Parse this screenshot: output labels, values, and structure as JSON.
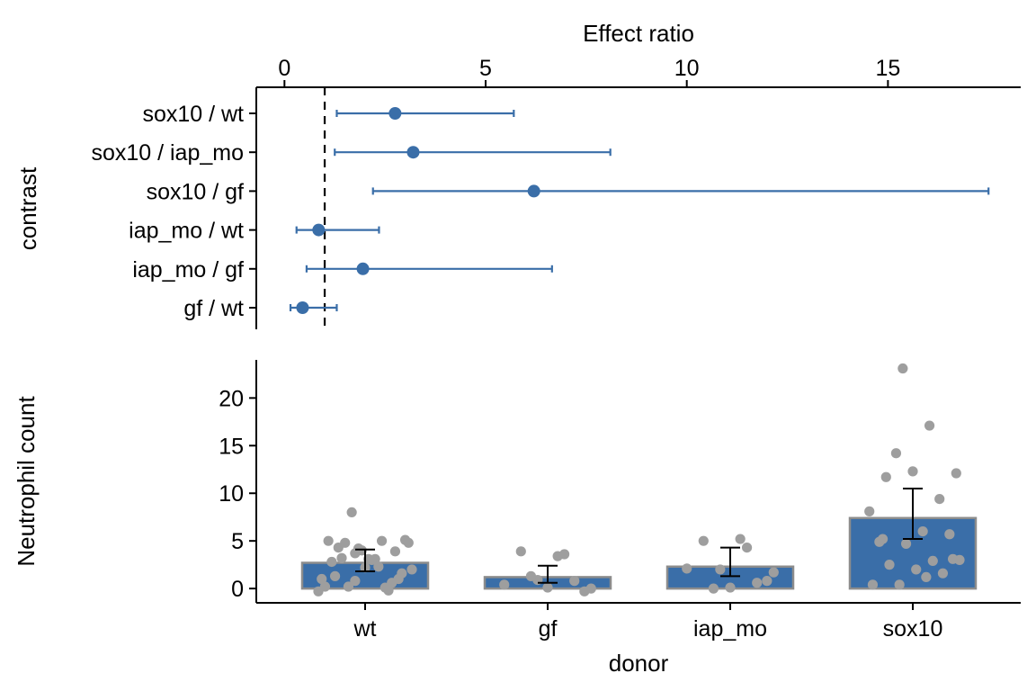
{
  "colors": {
    "accent": "#3A6EA8",
    "bar_fill": "#3A6EA8",
    "bar_outline": "#8C8C8C",
    "jitter_point": "#9E9E9E",
    "error_bar": "#000000",
    "reference_line": "#000000"
  },
  "chart_data": [
    {
      "type": "scatter",
      "subtype": "forest-plot",
      "xlabel": "Effect ratio",
      "ylabel": "contrast",
      "x_axis_position": "top",
      "xlim": [
        -0.7,
        18.3
      ],
      "xticks": [
        0,
        5,
        10,
        15
      ],
      "reference_x": 1,
      "grid": false,
      "categories": [
        "sox10 / wt",
        "sox10 / iap_mo",
        "sox10 / gf",
        "iap_mo / wt",
        "iap_mo / gf",
        "gf / wt"
      ],
      "estimates": [
        2.75,
        3.2,
        6.2,
        0.85,
        1.95,
        0.45
      ],
      "lower": [
        1.3,
        1.25,
        2.2,
        0.3,
        0.55,
        0.15
      ],
      "upper": [
        5.7,
        8.1,
        17.5,
        2.35,
        6.65,
        1.3
      ]
    },
    {
      "type": "bar",
      "xlabel": "donor",
      "ylabel": "Neutrophil count",
      "categories": [
        "wt",
        "gf",
        "iap_mo",
        "sox10"
      ],
      "values": [
        2.7,
        1.2,
        2.3,
        7.4
      ],
      "err_lower": [
        1.8,
        0.6,
        1.3,
        5.2
      ],
      "err_upper": [
        4.1,
        2.4,
        4.3,
        10.5
      ],
      "ylim": [
        -1.5,
        24
      ],
      "yticks": [
        0,
        5,
        10,
        15,
        20
      ],
      "grid": false,
      "points": [
        [
          0.8,
          5.0,
          4.8,
          4.3,
          2.2,
          0.6,
          1.0,
          0.2,
          3.1,
          1.6,
          2.8,
          4.2,
          0.1,
          2.0,
          3.2,
          3.1,
          3.9,
          0.2,
          8.0,
          2.3,
          5.1,
          1.3,
          4.0,
          -0.2,
          -0.3,
          4.8,
          3.0,
          1.0,
          5.0,
          3.7
        ],
        [
          0.9,
          3.6,
          0.0,
          3.9,
          0.1,
          0.8,
          0.4,
          1.3,
          3.4,
          -0.3
        ],
        [
          2.0,
          4.3,
          1.7,
          5.0,
          0.1,
          0.6,
          2.1,
          0.0,
          5.2,
          0.8
        ],
        [
          23.1,
          17.1,
          12.1,
          11.7,
          12.3,
          9.4,
          8.1,
          14.2,
          6.0,
          5.7,
          4.9,
          4.7,
          2.9,
          3.0,
          2.5,
          2.0,
          1.6,
          0.4,
          0.4,
          1.2,
          3.1,
          5.2
        ]
      ]
    }
  ]
}
